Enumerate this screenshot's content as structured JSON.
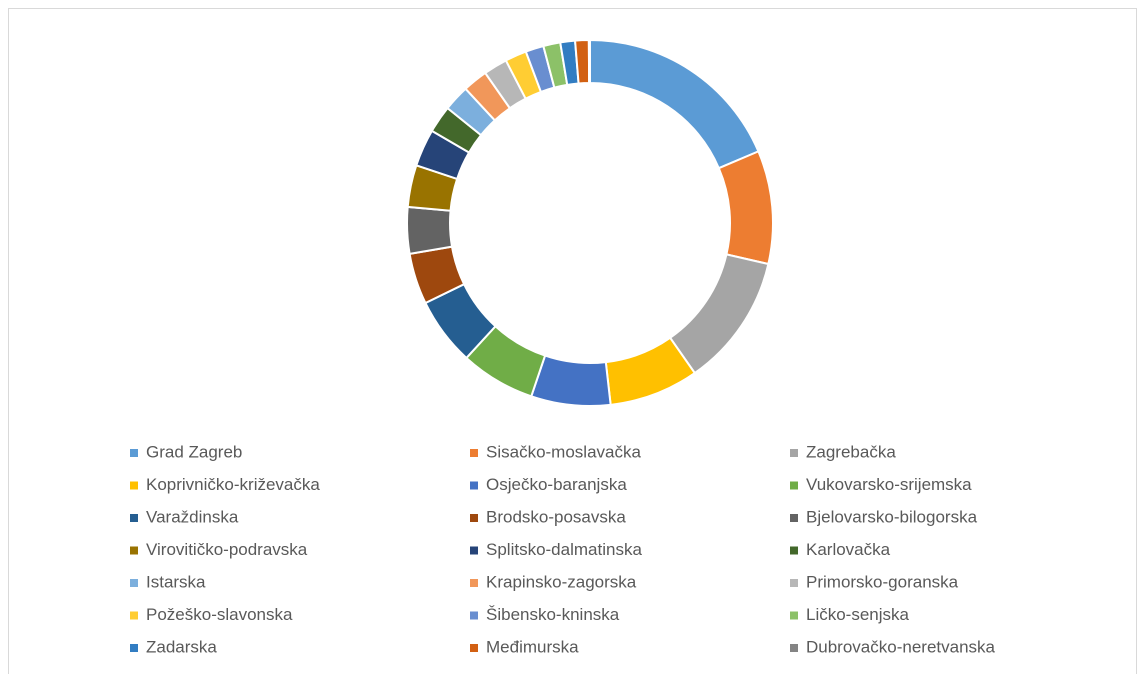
{
  "chart_data": {
    "type": "donut",
    "categories": [
      "Grad Zagreb",
      "Sisačko-moslavačka",
      "Zagrebačka",
      "Koprivničko-križevačka",
      "Osječko-baranjska",
      "Vukovarsko-srijemska",
      "Varaždinska",
      "Brodsko-posavska",
      "Bjelovarsko-bilogorska",
      "Virovitičko-podravska",
      "Splitsko-dalmatinska",
      "Karlovačka",
      "Istarska",
      "Krapinsko-zagorska",
      "Primorsko-goranska",
      "Požeško-slavonska",
      "Šibensko-kninska",
      "Ličko-senjska",
      "Zadarska",
      "Međimurska",
      "Dubrovačko-neretvanska"
    ],
    "values": [
      18.6,
      10,
      11.7,
      7.9,
      7,
      6.6,
      6,
      4.5,
      4.1,
      3.7,
      3.3,
      2.4,
      2.3,
      2.2,
      2.1,
      1.9,
      1.6,
      1.5,
      1.3,
      1.2,
      0.1
    ],
    "colors": [
      "#5b9bd5",
      "#ed7d31",
      "#a5a5a5",
      "#ffc000",
      "#4472c4",
      "#70ad47",
      "#255e91",
      "#9e480e",
      "#636363",
      "#997300",
      "#264478",
      "#43682b",
      "#7cafdd",
      "#f1975a",
      "#b7b7b7",
      "#ffcd33",
      "#698ed0",
      "#8cc168",
      "#327dc2",
      "#d26012",
      "#848484"
    ],
    "legend": "bottom"
  }
}
